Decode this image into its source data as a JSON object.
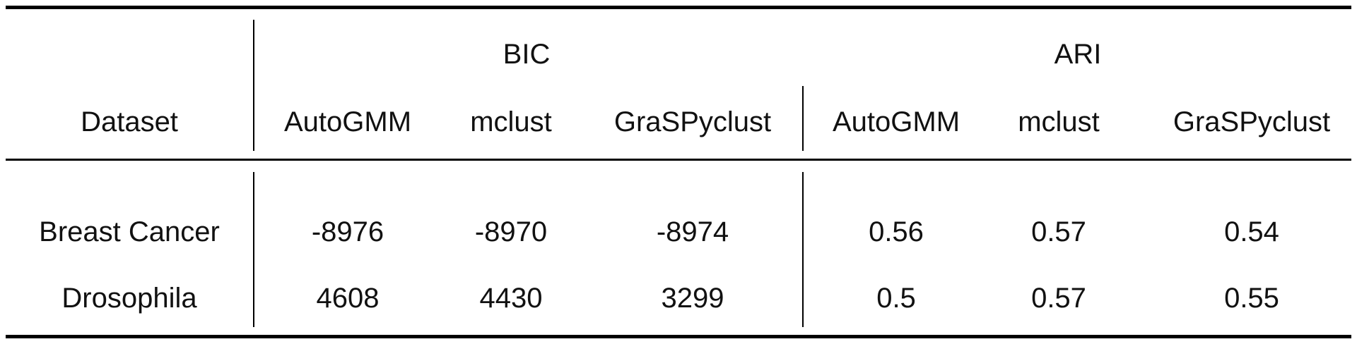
{
  "table": {
    "group_headers": [
      "BIC",
      "ARI"
    ],
    "columns": [
      "Dataset",
      "AutoGMM",
      "mclust",
      "GraSPyclust",
      "AutoGMM",
      "mclust",
      "GraSPyclust"
    ],
    "rows": [
      [
        "Breast Cancer",
        "-8976",
        "-8970",
        "-8974",
        "0.56",
        "0.57",
        "0.54"
      ],
      [
        "Drosophila",
        "4608",
        "4430",
        "3299",
        "0.5",
        "0.57",
        "0.55"
      ]
    ]
  }
}
